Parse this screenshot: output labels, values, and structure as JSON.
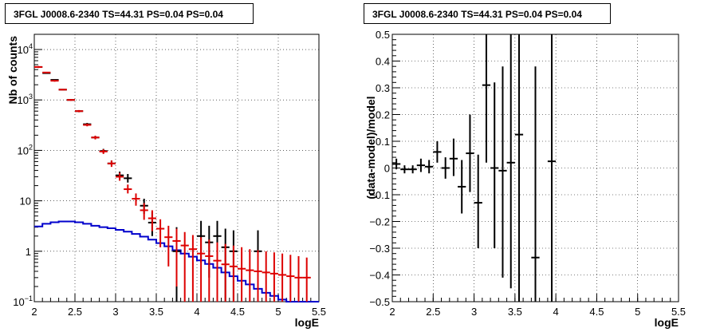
{
  "chart_data": [
    {
      "type": "histogram",
      "title": "3FGL J0008.6-2340 TS=44.31 PS=0.04 PS=0.04",
      "xlabel": "logE",
      "ylabel": "Nb of counts",
      "xlim": [
        2,
        5.5
      ],
      "ylim": [
        0.1,
        20000
      ],
      "yscale": "log",
      "grid": true,
      "xticks": [
        "2",
        "2.5",
        "3",
        "3.5",
        "4",
        "4.5",
        "5",
        "5.5"
      ],
      "yticks": [
        {
          "value": 0.1,
          "label": "10",
          "exp": "−1"
        },
        {
          "value": 1,
          "label": "1",
          "exp": ""
        },
        {
          "value": 10,
          "label": "10",
          "exp": ""
        },
        {
          "value": 100,
          "label": "10",
          "exp": "2"
        },
        {
          "value": 1000,
          "label": "10",
          "exp": "3"
        },
        {
          "value": 10000,
          "label": "10",
          "exp": "4"
        }
      ],
      "bin_width": 0.1,
      "series": [
        {
          "role": "model-histogram",
          "color": "#0000cc",
          "x": [
            2.05,
            2.15,
            2.25,
            2.35,
            2.45,
            2.55,
            2.65,
            2.75,
            2.85,
            2.95,
            3.05,
            3.15,
            3.25,
            3.35,
            3.45,
            3.55,
            3.65,
            3.75,
            3.85,
            3.95,
            4.05,
            4.15,
            4.25,
            4.35,
            4.45,
            4.55,
            4.65,
            4.75,
            4.85,
            4.95,
            5.05,
            5.15,
            5.25,
            5.35,
            5.45
          ],
          "values": [
            3.1,
            3.5,
            3.75,
            3.9,
            3.9,
            3.75,
            3.5,
            3.2,
            3.0,
            2.85,
            2.65,
            2.45,
            2.2,
            1.95,
            1.7,
            1.45,
            1.25,
            1.05,
            0.9,
            0.78,
            0.66,
            0.56,
            0.47,
            0.38,
            0.32,
            0.26,
            0.22,
            0.18,
            0.15,
            0.13,
            0.11,
            0.1,
            0.1,
            0.1,
            0.1
          ]
        },
        {
          "role": "model-counts",
          "color": "#dd0000",
          "x": [
            2.05,
            2.15,
            2.25,
            2.35,
            2.45,
            2.55,
            2.65,
            2.75,
            2.85,
            2.95,
            3.05,
            3.15,
            3.25,
            3.35,
            3.45,
            3.55,
            3.65,
            3.75,
            3.85,
            3.95,
            4.05,
            4.15,
            4.25,
            4.35,
            4.45,
            4.55,
            4.65,
            4.75,
            4.85,
            4.95,
            5.05,
            5.15,
            5.25,
            5.35
          ],
          "values": [
            4500,
            3500,
            2400,
            1600,
            1000,
            600,
            320,
            180,
            95,
            55,
            30,
            17,
            11,
            6.5,
            4.5,
            2.8,
            1.9,
            1.6,
            1.3,
            1.1,
            0.9,
            0.8,
            0.65,
            0.55,
            0.5,
            0.45,
            0.42,
            0.4,
            0.38,
            0.36,
            0.34,
            0.32,
            0.3,
            0.3
          ],
          "err_low": [
            4300,
            3400,
            2300,
            1550,
            960,
            570,
            300,
            165,
            85,
            47,
            25,
            14,
            8,
            4.2,
            2.5,
            1.2,
            0.5,
            0.2,
            0.1,
            0.1,
            0.1,
            0.1,
            0.1,
            0.1,
            0.1,
            0.1,
            0.1,
            0.1,
            0.1,
            0.1,
            0.1,
            0.1,
            0.1,
            0.1
          ],
          "err_high": [
            4700,
            3600,
            2500,
            1650,
            1040,
            630,
            340,
            195,
            105,
            63,
            36,
            21,
            14,
            9,
            6.5,
            4.3,
            3.2,
            2.8,
            2.4,
            2.1,
            1.9,
            1.7,
            1.5,
            1.4,
            1.3,
            1.2,
            1.1,
            1.05,
            1.0,
            0.95,
            0.9,
            0.85,
            0.8,
            0.75
          ]
        },
        {
          "role": "data-counts",
          "color": "#000000",
          "x": [
            2.05,
            2.15,
            2.25,
            2.35,
            2.45,
            2.55,
            2.65,
            2.75,
            2.85,
            2.95,
            3.05,
            3.15,
            3.35,
            3.45,
            3.75,
            4.05,
            4.15,
            4.25,
            4.35,
            4.45,
            4.75
          ],
          "values": [
            4500,
            3400,
            2500,
            1600,
            1000,
            600,
            330,
            180,
            97,
            55,
            32,
            28,
            8,
            3.7,
            1,
            2,
            1.5,
            2,
            1.2,
            1,
            1
          ],
          "err_low": [
            4400,
            3300,
            2450,
            1560,
            970,
            575,
            310,
            170,
            88,
            50,
            27,
            23,
            5.5,
            2,
            0.1,
            0.6,
            0.3,
            0.6,
            0.1,
            0.1,
            0.1
          ],
          "err_high": [
            4600,
            3500,
            2550,
            1640,
            1030,
            625,
            350,
            195,
            107,
            63,
            38,
            34,
            11,
            6,
            3,
            4,
            3.2,
            4,
            2.8,
            2.6,
            2.6
          ]
        }
      ]
    },
    {
      "type": "scatter",
      "title": "3FGL J0008.6-2340 TS=44.31 PS=0.04 PS=0.04",
      "xlabel": "logE",
      "ylabel": "(data-model)/model",
      "xlim": [
        2,
        5.5
      ],
      "ylim": [
        -0.5,
        0.5
      ],
      "grid": true,
      "xticks": [
        "2",
        "2.5",
        "3",
        "3.5",
        "4",
        "4.5",
        "5",
        "5.5"
      ],
      "yticks": [
        "−0.5",
        "−0.4",
        "−0.3",
        "−0.2",
        "−0.1",
        "0",
        "0.1",
        "0.2",
        "0.3",
        "0.4",
        "0.5"
      ],
      "series": [
        {
          "role": "residuals",
          "color": "#000000",
          "x": [
            2.05,
            2.15,
            2.25,
            2.35,
            2.45,
            2.55,
            2.65,
            2.75,
            2.85,
            2.95,
            3.05,
            3.15,
            3.25,
            3.35,
            3.45,
            3.55,
            3.75,
            3.95
          ],
          "values": [
            0.015,
            -0.005,
            -0.005,
            0.01,
            0.005,
            0.06,
            0.0,
            0.035,
            -0.07,
            0.055,
            -0.13,
            0.31,
            0.0,
            -0.01,
            0.02,
            0.125,
            -0.335,
            0.025
          ],
          "err_low": [
            -0.005,
            -0.02,
            -0.02,
            -0.015,
            -0.02,
            0.02,
            -0.04,
            -0.03,
            -0.17,
            -0.09,
            -0.3,
            0.02,
            -0.3,
            -0.41,
            -0.45,
            -0.5,
            -0.5,
            -0.5
          ],
          "err_high": [
            0.035,
            0.01,
            0.01,
            0.035,
            0.03,
            0.1,
            0.04,
            0.11,
            0.03,
            0.2,
            0.05,
            0.5,
            0.32,
            0.38,
            0.5,
            0.5,
            0.38,
            0.5
          ]
        }
      ]
    }
  ]
}
